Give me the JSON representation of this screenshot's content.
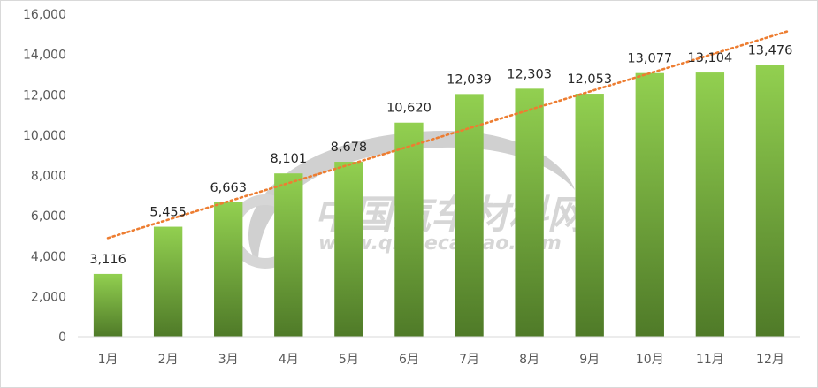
{
  "chart_data": {
    "type": "bar",
    "title": "",
    "xlabel": "",
    "ylabel": "",
    "categories": [
      "1月",
      "2月",
      "3月",
      "4月",
      "5月",
      "6月",
      "7月",
      "8月",
      "9月",
      "10月",
      "11月",
      "12月"
    ],
    "values": [
      3116,
      5455,
      6663,
      8101,
      8678,
      10620,
      12039,
      12303,
      12053,
      13077,
      13104,
      13476
    ],
    "value_labels": [
      "3,116",
      "5,455",
      "6,663",
      "8,101",
      "8,678",
      "10,620",
      "12,039",
      "12,303",
      "12,053",
      "13,077",
      "13,104",
      "13,476"
    ],
    "ylim": [
      0,
      16000
    ],
    "yticks": [
      0,
      2000,
      4000,
      6000,
      8000,
      10000,
      12000,
      14000,
      16000
    ],
    "ytick_labels": [
      "0",
      "2,000",
      "4,000",
      "6,000",
      "8,000",
      "10,000",
      "12,000",
      "14,000",
      "16,000"
    ],
    "trendline": {
      "type": "linear",
      "style": "dotted",
      "color": "#ED7D31"
    },
    "bar_gradient": {
      "top": "#92D050",
      "bottom": "#4F7A28"
    },
    "grid": false,
    "legend": "none"
  },
  "watermark": {
    "text": "中国汽车材料网",
    "url": "www.qichecailiao.com"
  }
}
